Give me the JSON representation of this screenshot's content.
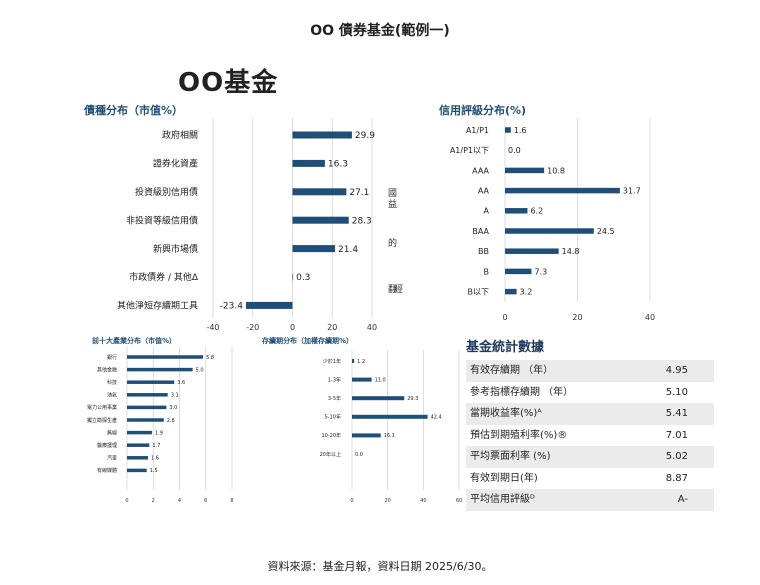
{
  "page": {
    "header_title": "OO 債券基金(範例一)",
    "fund_name": "OO基金",
    "footer": "資料來源：基金月報，資料日期 2025/6/30。",
    "note_chars": [
      "國",
      "益",
      "的",
      "翻",
      "經"
    ]
  },
  "colors": {
    "bar": "#1f4e79",
    "title": "#1f4e79",
    "grid": "#cfcfcf"
  },
  "chart_data": [
    {
      "id": "bond-type",
      "type": "bar",
      "orientation": "horizontal",
      "title": "債種分布（市值%）",
      "categories": [
        "政府相關",
        "證券化資產",
        "投資級別信用債",
        "非投資等級信用債",
        "新興市場債",
        "市政債券 / 其他Δ",
        "其他淨短存續期工具"
      ],
      "values": [
        29.9,
        16.3,
        27.1,
        28.3,
        21.4,
        0.3,
        -23.4
      ],
      "labels": [
        "29.9",
        "16.3",
        "27.1",
        "28.3",
        "21.4",
        "0.3",
        "-23.4"
      ],
      "xlim": [
        -40,
        40
      ],
      "ticks": [
        -40,
        -20,
        0,
        20,
        40
      ],
      "tick_labels": [
        "-40",
        "-20",
        "0",
        "20",
        "40"
      ],
      "grid": true
    },
    {
      "id": "credit-rating",
      "type": "bar",
      "orientation": "horizontal",
      "title": "信用評級分布(%)",
      "categories": [
        "A1/P1",
        "A1/P1以下",
        "AAA",
        "AA",
        "A",
        "BAA",
        "BB",
        "B",
        "B以下"
      ],
      "values": [
        1.6,
        0.0,
        10.8,
        31.7,
        6.2,
        24.5,
        14.8,
        7.3,
        3.2
      ],
      "labels": [
        "1.6",
        "0.0",
        "10.8",
        "31.7",
        "6.2",
        "24.5",
        "14.8",
        "7.3",
        "3.2"
      ],
      "xlim": [
        0,
        40
      ],
      "ticks": [
        0,
        20,
        40
      ],
      "tick_labels": [
        "0",
        "20",
        "40"
      ],
      "grid": true
    },
    {
      "id": "industry-top10",
      "type": "bar",
      "orientation": "horizontal",
      "title": "前十大產業分布（市值%）",
      "categories": [
        "銀行",
        "其他金融",
        "科技",
        "油氣",
        "電力公用事業",
        "獨立勘探生產",
        "無線",
        "醫療護理",
        "汽車",
        "有線媒體"
      ],
      "values": [
        5.8,
        5.0,
        3.6,
        3.1,
        3.0,
        2.8,
        1.9,
        1.7,
        1.6,
        1.5
      ],
      "labels": [
        "5.8",
        "5.0",
        "3.6",
        "3.1",
        "3.0",
        "2.8",
        "1.9",
        "1.7",
        "1.6",
        "1.5"
      ],
      "xlim": [
        0,
        8
      ],
      "ticks": [
        0,
        2,
        4,
        6,
        8
      ],
      "tick_labels": [
        "0",
        "2",
        "4",
        "6",
        "8"
      ],
      "grid": true
    },
    {
      "id": "duration",
      "type": "bar",
      "orientation": "horizontal",
      "title": "存續期分布（加權存續期%）",
      "categories": [
        "少於1年",
        "1-3年",
        "3-5年",
        "5-10年",
        "10-20年",
        "20年以上"
      ],
      "values": [
        1.2,
        11.0,
        29.3,
        42.4,
        16.1,
        0.0
      ],
      "labels": [
        "1.2",
        "11.0",
        "29.3",
        "42.4",
        "16.1",
        "0.0"
      ],
      "xlim": [
        0,
        60
      ],
      "ticks": [
        0,
        20,
        40,
        60
      ],
      "tick_labels": [
        "0",
        "20",
        "40",
        "60"
      ],
      "grid": true
    }
  ],
  "stats": {
    "title": "基金統計數據",
    "rows": [
      {
        "label": "有效存續期 （年）",
        "value": "4.95"
      },
      {
        "label": "參考指標存續期 （年）",
        "value": "5.10"
      },
      {
        "label": "當期收益率(%)ᴬ",
        "value": "5.41"
      },
      {
        "label": "預估到期殖利率(%)®",
        "value": "7.01"
      },
      {
        "label": "平均票面利率 (%)",
        "value": "5.02"
      },
      {
        "label": "有效到期日(年)",
        "value": "8.87"
      },
      {
        "label": "平均信用評級ᴰ",
        "value": "A-"
      }
    ]
  }
}
